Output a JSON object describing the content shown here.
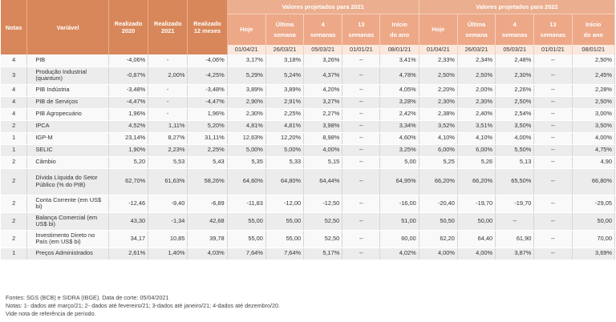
{
  "header": {
    "notas": "Notas",
    "variavel": "Variável",
    "realizado_2020": [
      "Realizado",
      "2020"
    ],
    "realizado_2021": [
      "Realizado",
      "2021"
    ],
    "realizado_12m": [
      "Realizado",
      "12 meses"
    ],
    "group_2021": "Valores projetados para 2021",
    "group_2022": "Valores projetados para 2022",
    "sub": [
      {
        "l1": "Hoje",
        "l2": ""
      },
      {
        "l1": "Última",
        "l2": "semana"
      },
      {
        "l1": "4",
        "l2": "semanas"
      },
      {
        "l1": "13",
        "l2": "semanas"
      },
      {
        "l1": "Início",
        "l2": "do ano"
      },
      {
        "l1": "Hoje",
        "l2": ""
      },
      {
        "l1": "Última",
        "l2": "semana"
      },
      {
        "l1": "4",
        "l2": "semanas"
      },
      {
        "l1": "13",
        "l2": "semanas"
      },
      {
        "l1": "Início",
        "l2": "do ano"
      }
    ],
    "dates": [
      "01/04/21",
      "26/03/21",
      "05/03/21",
      "01/01/21",
      "08/01/21",
      "01/04/21",
      "26/03/21",
      "05/03/21",
      "01/01/21",
      "08/01/21"
    ]
  },
  "rows": [
    {
      "nota": "4",
      "variavel": "PIB",
      "cells": [
        "-4,06%",
        "-",
        "-4,06%",
        "3,17%",
        "3,18%",
        "3,26%",
        "--",
        "3,41%",
        "2,33%",
        "2,34%",
        "2,48%",
        "--",
        "2,50%"
      ]
    },
    {
      "nota": "3",
      "variavel": "Produção Industrial (quantum)",
      "cells": [
        "-0,87%",
        "2,00%",
        "-4,25%",
        "5,29%",
        "5,24%",
        "4,37%",
        "--",
        "4,78%",
        "2,50%",
        "2,50%",
        "2,30%",
        "--",
        "2,45%"
      ]
    },
    {
      "nota": "4",
      "variavel": "PIB Indústria",
      "cells": [
        "-3,48%",
        "-",
        "-3,48%",
        "3,89%",
        "3,89%",
        "4,20%",
        "--",
        "4,05%",
        "2,20%",
        "2,00%",
        "2,26%",
        "--",
        "2,28%"
      ]
    },
    {
      "nota": "4",
      "variavel": "PIB de Serviços",
      "cells": [
        "-4,47%",
        "-",
        "-4,47%",
        "2,90%",
        "2,91%",
        "3,27%",
        "--",
        "3,28%",
        "2,30%",
        "2,30%",
        "2,50%",
        "--",
        "2,50%"
      ]
    },
    {
      "nota": "4",
      "variavel": "PIB Agropecuário",
      "cells": [
        "1,96%",
        "-",
        "1,96%",
        "2,30%",
        "2,25%",
        "2,27%",
        "--",
        "2,42%",
        "2,38%",
        "2,40%",
        "2,54%",
        "--",
        "3,00%"
      ]
    },
    {
      "nota": "2",
      "variavel": "IPCA",
      "cells": [
        "4,52%",
        "1,11%",
        "5,20%",
        "4,81%",
        "4,81%",
        "3,98%",
        "--",
        "3,34%",
        "3,52%",
        "3,51%",
        "3,50%",
        "--",
        "3,50%"
      ]
    },
    {
      "nota": "1",
      "variavel": "IGP-M",
      "cells": [
        "23,14%",
        "8,27%",
        "31,11%",
        "12,63%",
        "12,20%",
        "8,98%",
        "--",
        "4,60%",
        "4,10%",
        "4,10%",
        "4,00%",
        "--",
        "4,00%"
      ]
    },
    {
      "nota": "1",
      "variavel": "SELIC",
      "cells": [
        "1,90%",
        "2,23%",
        "2,25%",
        "5,00%",
        "5,00%",
        "4,00%",
        "--",
        "3,25%",
        "6,00%",
        "6,00%",
        "5,50%",
        "--",
        "4,75%"
      ]
    },
    {
      "nota": "2",
      "variavel": "Câmbio",
      "cells": [
        "5,20",
        "5,53",
        "5,43",
        "5,35",
        "5,33",
        "5,15",
        "--",
        "5,00",
        "5,25",
        "5,26",
        "5,13",
        "--",
        "4,90"
      ]
    },
    {
      "nota": "2",
      "variavel": "Dívida Líquida do Setor Público (% do PIB)",
      "cells": [
        "62,70%",
        "61,63%",
        "58,26%",
        "64,60%",
        "64,80%",
        "64,44%",
        "--",
        "64,95%",
        "66,20%",
        "66,20%",
        "65,50%",
        "--",
        "66,80%"
      ]
    },
    {
      "nota": "2",
      "variavel": "Conta Corrente (em US$ bi)",
      "cells": [
        "-12,46",
        "-9,40",
        "-6,89",
        "-11,83",
        "-12,00",
        "-12,50",
        "--",
        "-16,00",
        "-20,40",
        "-19,70",
        "-19,70",
        "--",
        "-29,05"
      ]
    },
    {
      "nota": "2",
      "variavel": "Balança Comercial (em US$ bi)",
      "cells": [
        "43,30",
        "-1,34",
        "42,68",
        "55,00",
        "55,00",
        "52,50",
        "--",
        "51,00",
        "50,50",
        "50,00",
        "--",
        "--",
        "50,00"
      ]
    },
    {
      "nota": "2",
      "variavel": "Investimento Direto no País (em US$ bi)",
      "cells": [
        "34,17",
        "10,85",
        "39,78",
        "55,00",
        "55,00",
        "52,50",
        "--",
        "60,00",
        "62,20",
        "64,40",
        "61,90",
        "--",
        "70,00"
      ]
    },
    {
      "nota": "1",
      "variavel": "Preços Administrados",
      "cells": [
        "2,61%",
        "1,40%",
        "4,03%",
        "7,64%",
        "7,64%",
        "5,17%",
        "--",
        "4,02%",
        "4,00%",
        "4,00%",
        "3,87%",
        "--",
        "3,69%"
      ]
    }
  ],
  "footer": {
    "fontes": "Fontes: SGS (BCB) e  SIDRA (IBGE). Data de corte: 05/04/2021",
    "notas": "Notas:  1- dados até março/21; 2- dados até fevereiro/21; 3-dados até janeiro/21; 4-dados até dezembro/20.",
    "vide": "Vide nota de referência de período."
  }
}
